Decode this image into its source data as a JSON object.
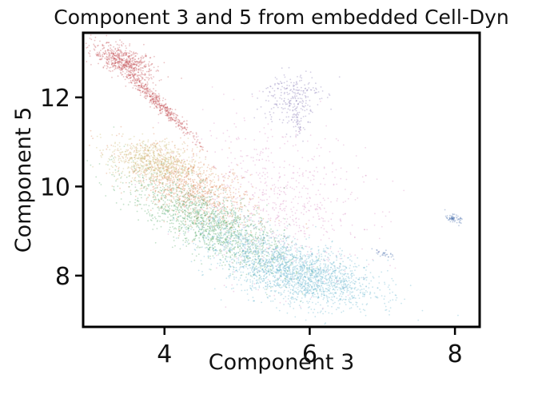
{
  "chart_data": {
    "type": "scatter",
    "title": "Component 3 and 5 from embedded Cell-Dyn",
    "xlabel": "Component 3",
    "ylabel": "Component 5",
    "xlim": [
      2.88,
      8.34
    ],
    "ylim": [
      6.85,
      13.45
    ],
    "xticks": [
      4,
      6,
      8
    ],
    "yticks": [
      8,
      10,
      12
    ],
    "xtick_labels": [
      "4",
      "6",
      "8"
    ],
    "ytick_labels": [
      "8",
      "10",
      "12"
    ],
    "grid": false,
    "legend": "none",
    "colors": {
      "red": "#c44e52",
      "gold": "#ccb974",
      "orange": "#dd8452",
      "green": "#55a868",
      "pink": "#da8bc3",
      "cyan": "#64b5cd",
      "purple": "#8172b3",
      "blue": "#4c72b0",
      "axis": "#000000"
    },
    "clusters": [
      {
        "color": "pink",
        "cx": 5.55,
        "cy": 9.6,
        "sx": 0.6,
        "sy": 0.85,
        "rho": -0.2,
        "n": 700
      },
      {
        "color": "orange",
        "cx": 4.35,
        "cy": 10.0,
        "sx": 0.45,
        "sy": 0.45,
        "rho": -0.6,
        "n": 1000
      },
      {
        "color": "green",
        "cx": 4.6,
        "cy": 9.2,
        "sx": 0.55,
        "sy": 0.55,
        "rho": -0.75,
        "n": 1400
      },
      {
        "color": "gold",
        "cx": 3.85,
        "cy": 10.55,
        "sx": 0.3,
        "sy": 0.25,
        "rho": -0.3,
        "n": 700
      },
      {
        "color": "cyan",
        "cx": 5.9,
        "cy": 8.0,
        "sx": 0.5,
        "sy": 0.35,
        "rho": -0.4,
        "n": 1700
      },
      {
        "color": "cyan",
        "cx": 5.1,
        "cy": 8.7,
        "sx": 0.45,
        "sy": 0.4,
        "rho": -0.6,
        "n": 500
      },
      {
        "color": "red",
        "cx": 3.45,
        "cy": 12.8,
        "sx": 0.22,
        "sy": 0.2,
        "rho": -0.6,
        "n": 600
      },
      {
        "color": "red",
        "cx": 3.9,
        "cy": 11.9,
        "sx": 0.28,
        "sy": 0.45,
        "rho": -0.98,
        "n": 500
      },
      {
        "color": "purple",
        "cx": 5.75,
        "cy": 12.0,
        "sx": 0.2,
        "sy": 0.3,
        "rho": 0.1,
        "n": 250
      },
      {
        "color": "purple",
        "cx": 5.85,
        "cy": 11.4,
        "sx": 0.05,
        "sy": 0.2,
        "rho": 0.0,
        "n": 40
      },
      {
        "color": "blue",
        "cx": 7.98,
        "cy": 9.28,
        "sx": 0.05,
        "sy": 0.05,
        "rho": -0.5,
        "n": 70
      },
      {
        "color": "blue",
        "cx": 7.02,
        "cy": 8.5,
        "sx": 0.07,
        "sy": 0.05,
        "rho": -0.7,
        "n": 30
      }
    ]
  }
}
